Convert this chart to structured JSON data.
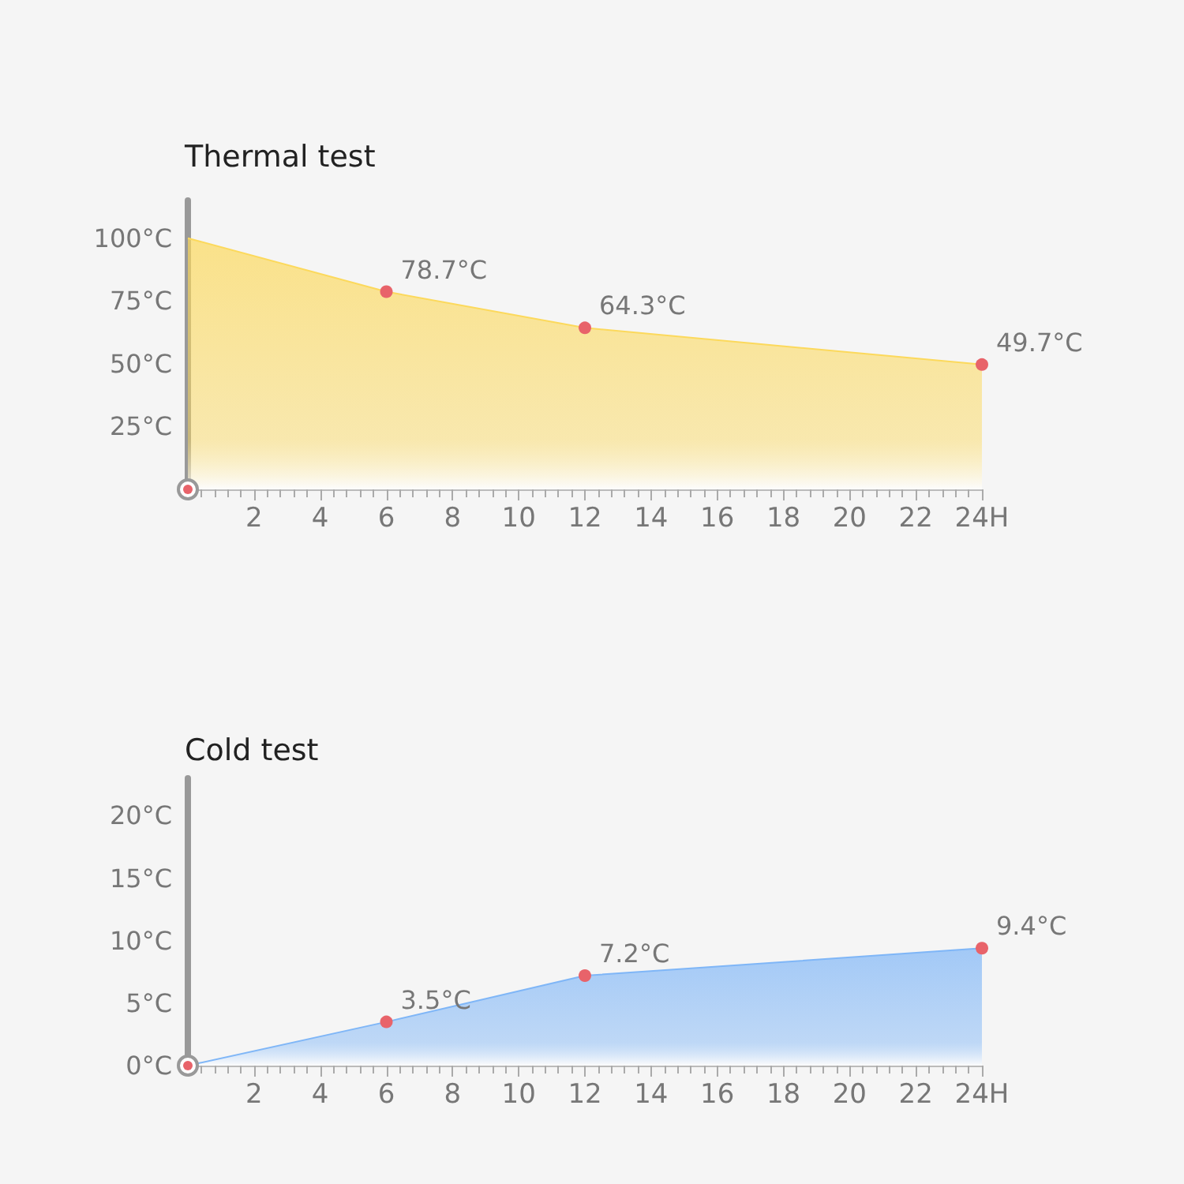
{
  "chart_data": [
    {
      "type": "area",
      "title": "Thermal test",
      "x": [
        0,
        6,
        12,
        24
      ],
      "marker": "circle",
      "series": [
        {
          "color": "#fcd95c",
          "values": [
            100,
            78.7,
            64.3,
            49.7
          ],
          "value_labels": [
            null,
            "78.7°C",
            "64.3°C",
            "49.7°C"
          ]
        }
      ],
      "xlim": [
        0,
        24
      ],
      "xticks": [
        2,
        4,
        6,
        8,
        10,
        12,
        14,
        16,
        18,
        20,
        22,
        {
          "value": 24,
          "label": "24H"
        }
      ],
      "ylim": [
        0,
        115
      ],
      "yticks": [
        {
          "value": 25,
          "label": "25°C"
        },
        {
          "value": 50,
          "label": "50°C"
        },
        {
          "value": 75,
          "label": "75°C"
        },
        {
          "value": 100,
          "label": "100°C"
        }
      ],
      "grid": false
    },
    {
      "type": "area",
      "title": "Cold test",
      "x": [
        0,
        6,
        12,
        24
      ],
      "marker": "circle",
      "series": [
        {
          "color": "#7fb6f7",
          "values": [
            0,
            3.5,
            7.2,
            9.4
          ],
          "value_labels": [
            null,
            "3.5°C",
            "7.2°C",
            "9.4°C"
          ]
        }
      ],
      "xlim": [
        0,
        24
      ],
      "xticks": [
        2,
        4,
        6,
        8,
        10,
        12,
        14,
        16,
        18,
        20,
        22,
        {
          "value": 24,
          "label": "24H"
        }
      ],
      "ylim": [
        0,
        23
      ],
      "yticks": [
        {
          "value": 0,
          "label": "0°C"
        },
        {
          "value": 5,
          "label": "5°C"
        },
        {
          "value": 10,
          "label": "10°C"
        },
        {
          "value": 15,
          "label": "15°C"
        },
        {
          "value": 20,
          "label": "20°C"
        }
      ],
      "grid": false
    }
  ]
}
